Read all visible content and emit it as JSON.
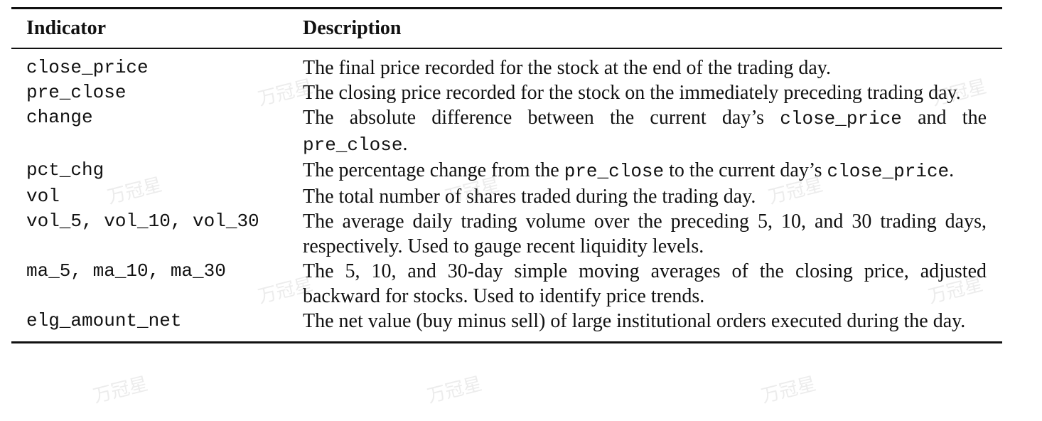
{
  "table": {
    "headers": [
      "Indicator",
      "Description"
    ],
    "rows": [
      {
        "indicator": "close_price",
        "description": [
          "The final price recorded for the stock at the end of the trading day."
        ]
      },
      {
        "indicator": "pre_close",
        "description": [
          "The closing price recorded for the stock on the immediately preceding trading day."
        ]
      },
      {
        "indicator": "change",
        "description": [
          "The absolute difference between the current day’s ",
          "close_price",
          " and the ",
          "pre_close",
          "."
        ]
      },
      {
        "indicator": "pct_chg",
        "description": [
          "The percentage change from the ",
          "pre_close",
          " to the current day’s ",
          "close_price",
          "."
        ]
      },
      {
        "indicator": "vol",
        "description": [
          "The total number of shares traded during the trading day."
        ]
      },
      {
        "indicator": "vol_5, vol_10, vol_30",
        "description": [
          "The average daily trading volume over the preceding 5, 10, and 30 trading days, respectively. Used to gauge recent liquidity levels."
        ]
      },
      {
        "indicator": "ma_5, ma_10, ma_30",
        "description": [
          "The 5, 10, and 30-day simple moving averages of the closing price, adjusted backward for stocks. Used to identify price trends."
        ]
      },
      {
        "indicator": "elg_amount_net",
        "description": [
          "The net value (buy minus sell) of large institutional orders executed during the day."
        ]
      }
    ]
  },
  "watermark": {
    "text": "万冠星"
  }
}
